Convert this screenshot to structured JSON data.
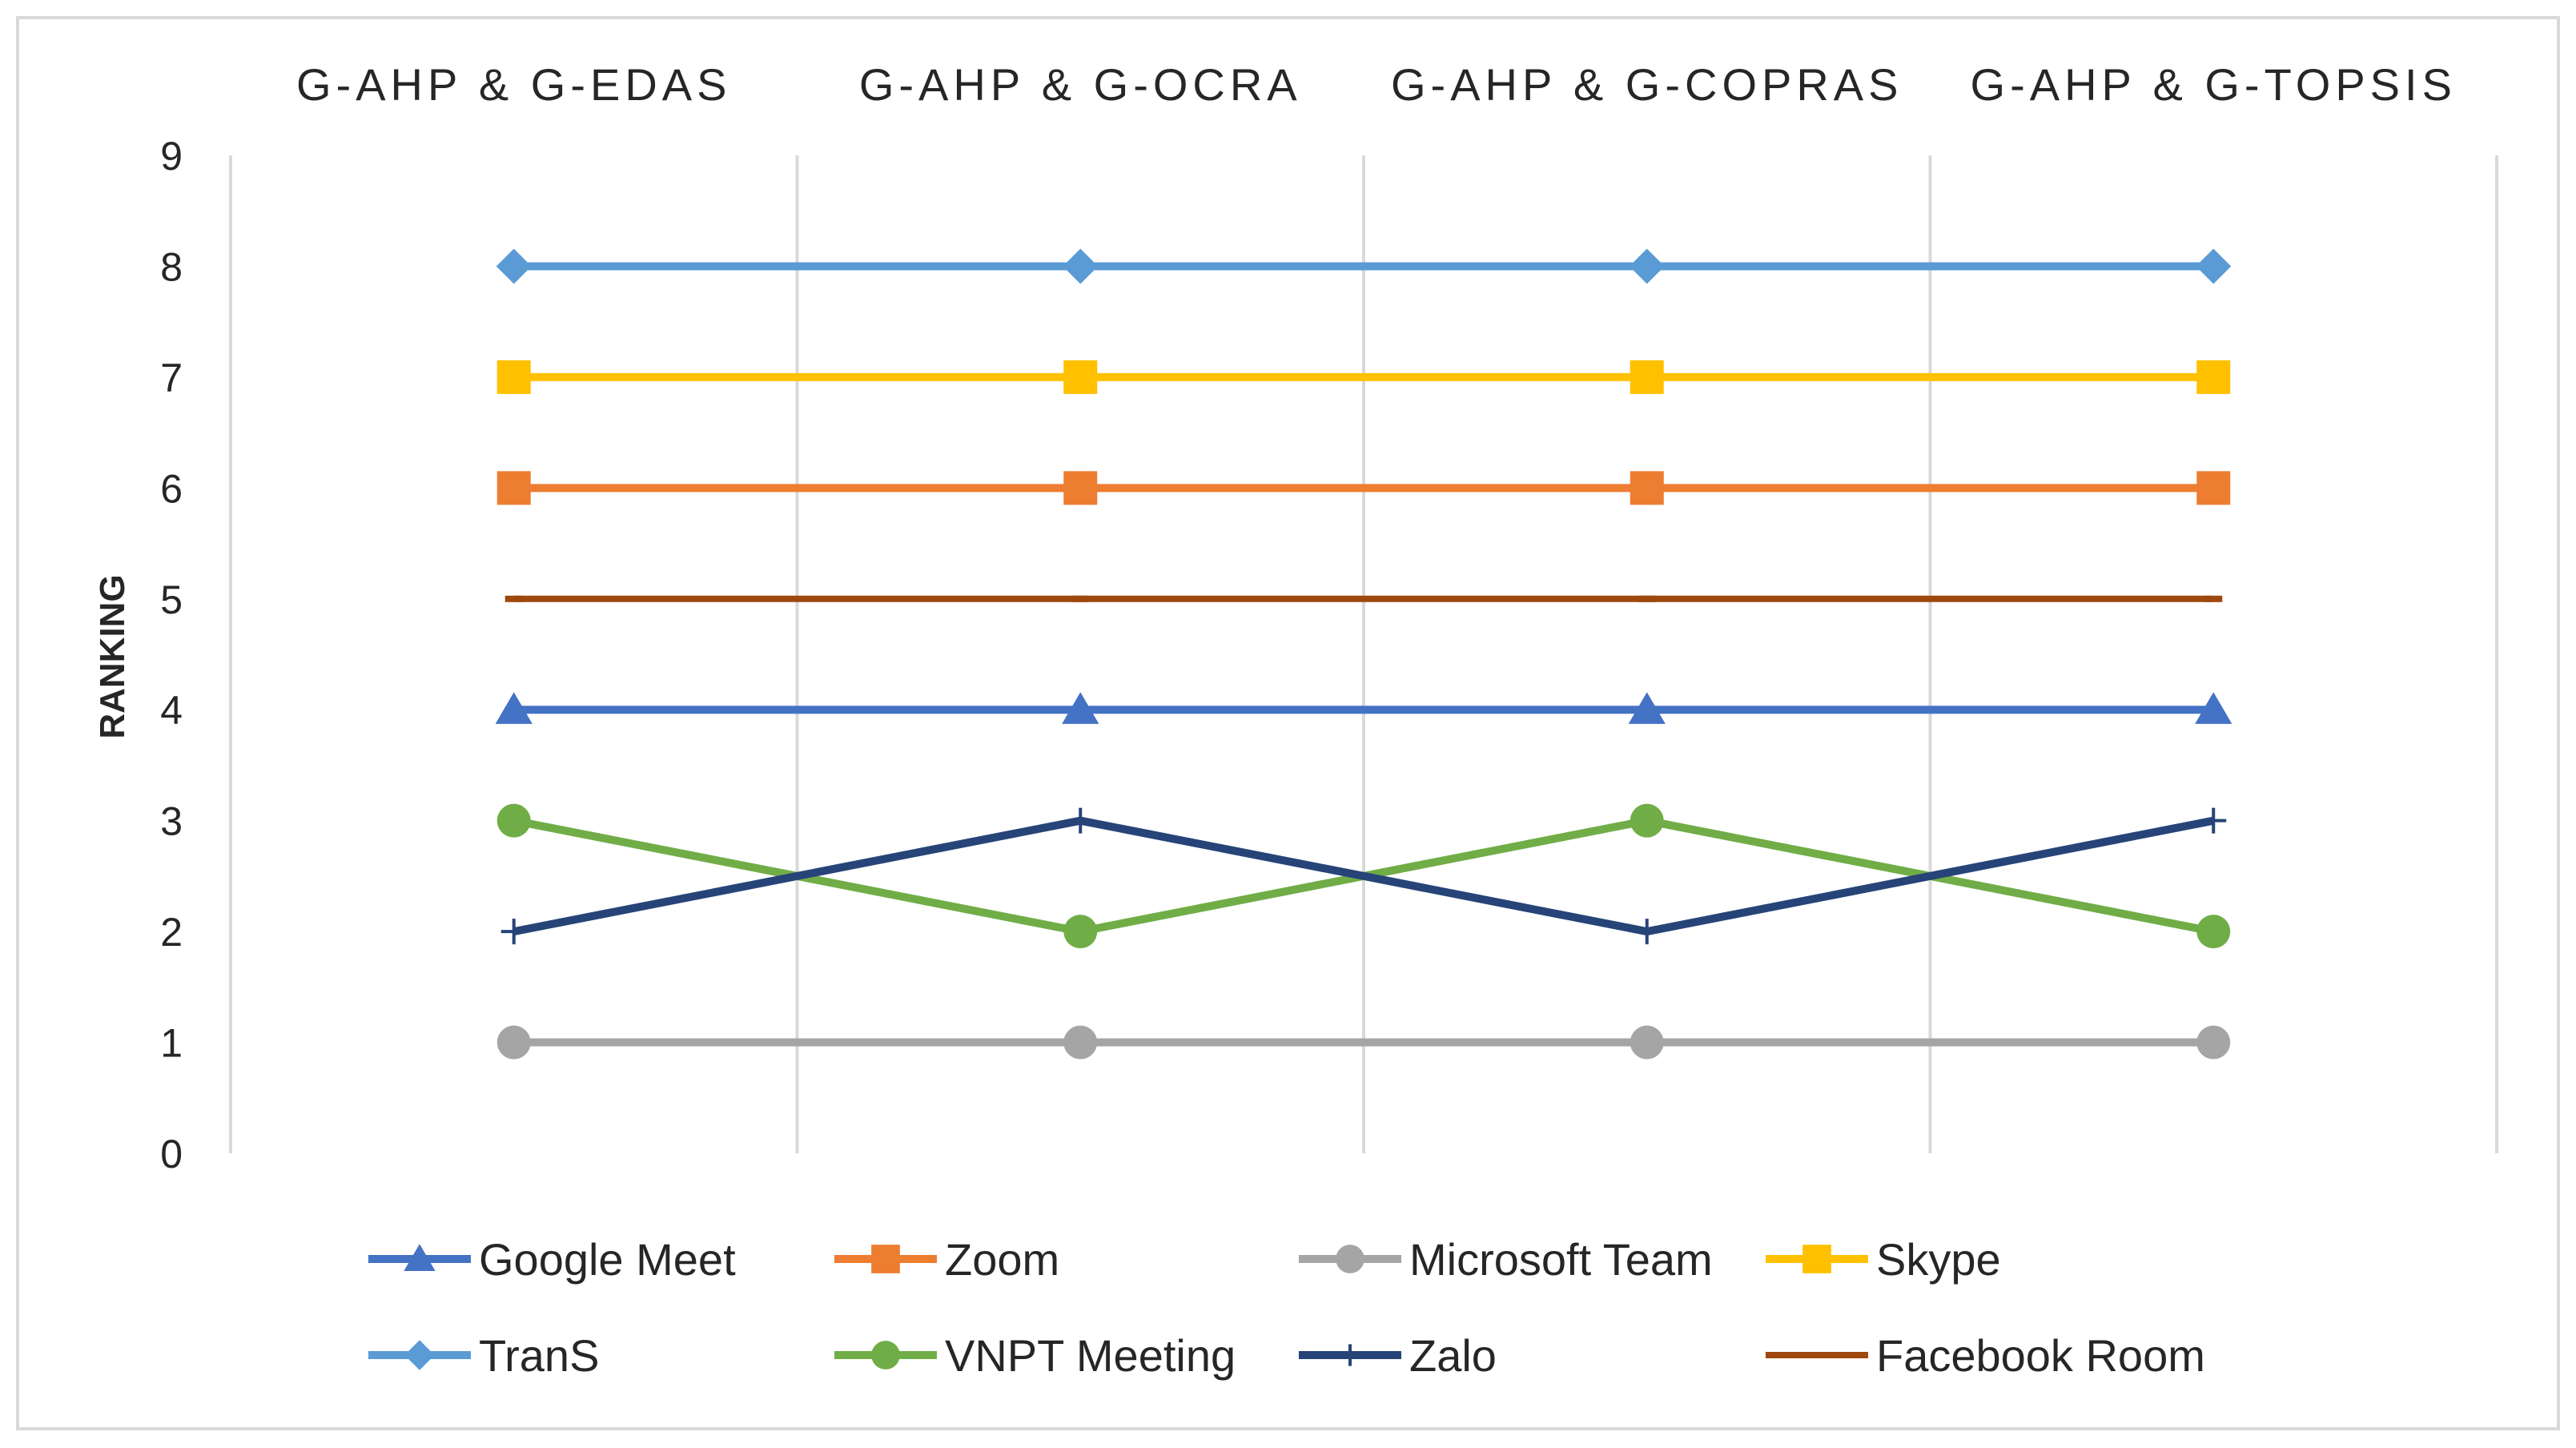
{
  "chart_data": {
    "type": "line",
    "title": "",
    "xlabel": "",
    "ylabel": "RANKING",
    "categories": [
      "G-AHP & G-EDAS",
      "G-AHP & G-OCRA",
      "G-AHP & G-COPRAS",
      "G-AHP & G-TOPSIS"
    ],
    "ylim": [
      0,
      9
    ],
    "yticks": [
      "0",
      "1",
      "2",
      "3",
      "4",
      "5",
      "6",
      "7",
      "8",
      "9"
    ],
    "grid": "vertical",
    "legend_position": "bottom",
    "series": [
      {
        "name": "Google Meet",
        "values": [
          4,
          4,
          4,
          4
        ],
        "color": "#4472C4",
        "marker": "triangle"
      },
      {
        "name": "Zoom",
        "values": [
          6,
          6,
          6,
          6
        ],
        "color": "#ED7D31",
        "marker": "square"
      },
      {
        "name": "Microsoft Team",
        "values": [
          1,
          1,
          1,
          1
        ],
        "color": "#A5A5A5",
        "marker": "circle"
      },
      {
        "name": "Skype",
        "values": [
          7,
          7,
          7,
          7
        ],
        "color": "#FFC000",
        "marker": "square"
      },
      {
        "name": "TranS",
        "values": [
          8,
          8,
          8,
          8
        ],
        "color": "#5B9BD5",
        "marker": "diamond"
      },
      {
        "name": "VNPT Meeting",
        "values": [
          3,
          2,
          3,
          2
        ],
        "color": "#70AD47",
        "marker": "circle"
      },
      {
        "name": "Zalo",
        "values": [
          2,
          3,
          2,
          3
        ],
        "color": "#264478",
        "marker": "plus"
      },
      {
        "name": "Facebook Room",
        "values": [
          5,
          5,
          5,
          5
        ],
        "color": "#9E480E",
        "marker": "dash"
      }
    ]
  }
}
